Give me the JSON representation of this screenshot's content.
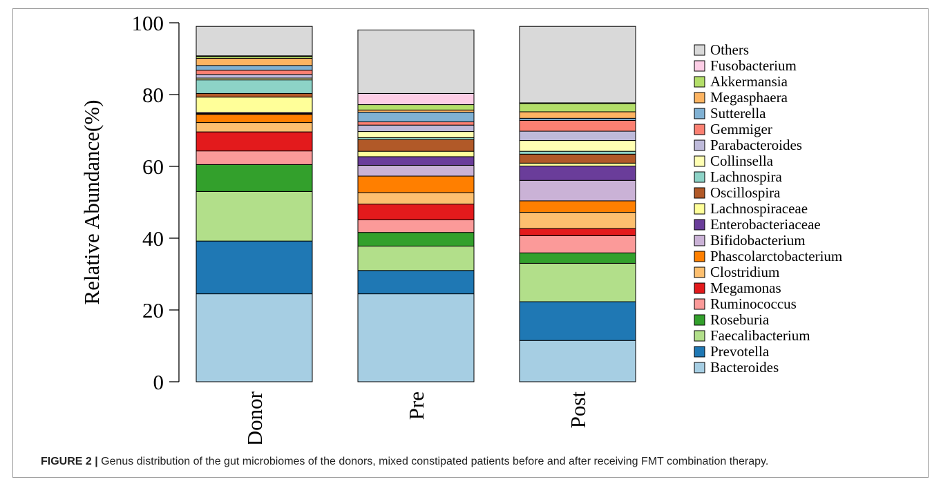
{
  "chart_data": {
    "type": "bar",
    "stacked": true,
    "categories": [
      "Donor",
      "Pre",
      "Post"
    ],
    "ylabel": "Relative Abundance(%)",
    "ylim": [
      0,
      100
    ],
    "yticks": [
      0,
      20,
      40,
      60,
      80,
      100
    ],
    "legend_position": "right",
    "series": [
      {
        "name": "Bacteroides",
        "color": "#a6cee3",
        "values": [
          24.5,
          24.5,
          11.5
        ]
      },
      {
        "name": "Prevotella",
        "color": "#1f78b4",
        "values": [
          14.7,
          6.5,
          10.8
        ]
      },
      {
        "name": "Faecalibacterium",
        "color": "#b2df8a",
        "values": [
          13.8,
          6.8,
          10.7
        ]
      },
      {
        "name": "Roseburia",
        "color": "#33a02c",
        "values": [
          7.5,
          3.8,
          2.9
        ]
      },
      {
        "name": "Ruminococcus",
        "color": "#fb9a99",
        "values": [
          3.8,
          3.5,
          4.8
        ]
      },
      {
        "name": "Megamonas",
        "color": "#e31a1c",
        "values": [
          5.3,
          4.4,
          2.0
        ]
      },
      {
        "name": "Clostridium",
        "color": "#fdbf6f",
        "values": [
          2.6,
          3.2,
          4.5
        ]
      },
      {
        "name": "Phascolarctobacterium",
        "color": "#ff7f00",
        "values": [
          2.3,
          4.6,
          3.2
        ]
      },
      {
        "name": "Bifidobacterium",
        "color": "#cab2d6",
        "values": [
          0.2,
          3.0,
          5.7
        ]
      },
      {
        "name": "Enterobacteriaceae",
        "color": "#6a3d9a",
        "values": [
          0.3,
          2.4,
          4.0
        ]
      },
      {
        "name": "Lachnospiraceae",
        "color": "#ffff99",
        "values": [
          4.3,
          1.5,
          0.8
        ]
      },
      {
        "name": "Oscillospira",
        "color": "#b15928",
        "values": [
          1.0,
          3.3,
          2.5
        ]
      },
      {
        "name": "Lachnospira",
        "color": "#8dd3c7",
        "values": [
          3.8,
          0.5,
          0.8
        ]
      },
      {
        "name": "Collinsella",
        "color": "#ffffb3",
        "values": [
          0.5,
          1.7,
          3.0
        ]
      },
      {
        "name": "Parabacteroides",
        "color": "#bebada",
        "values": [
          1.0,
          1.8,
          2.6
        ]
      },
      {
        "name": "Gemmiger",
        "color": "#fb8072",
        "values": [
          1.2,
          0.9,
          3.0
        ]
      },
      {
        "name": "Sutterella",
        "color": "#80b1d3",
        "values": [
          1.3,
          2.7,
          0.6
        ]
      },
      {
        "name": "Megasphaera",
        "color": "#fdb462",
        "values": [
          2.0,
          0.6,
          1.8
        ]
      },
      {
        "name": "Akkermansia",
        "color": "#b3de69",
        "values": [
          0.5,
          1.5,
          2.3
        ]
      },
      {
        "name": "Fusobacterium",
        "color": "#fccde5",
        "values": [
          0.2,
          3.1,
          0.2
        ]
      },
      {
        "name": "Others",
        "color": "#d9d9d9",
        "values": [
          8.2,
          17.7,
          21.3
        ]
      }
    ]
  },
  "caption": {
    "label": "FIGURE 2 |",
    "text": " Genus distribution of the gut microbiomes of the donors, mixed constipated patients before and after receiving FMT combination therapy."
  }
}
